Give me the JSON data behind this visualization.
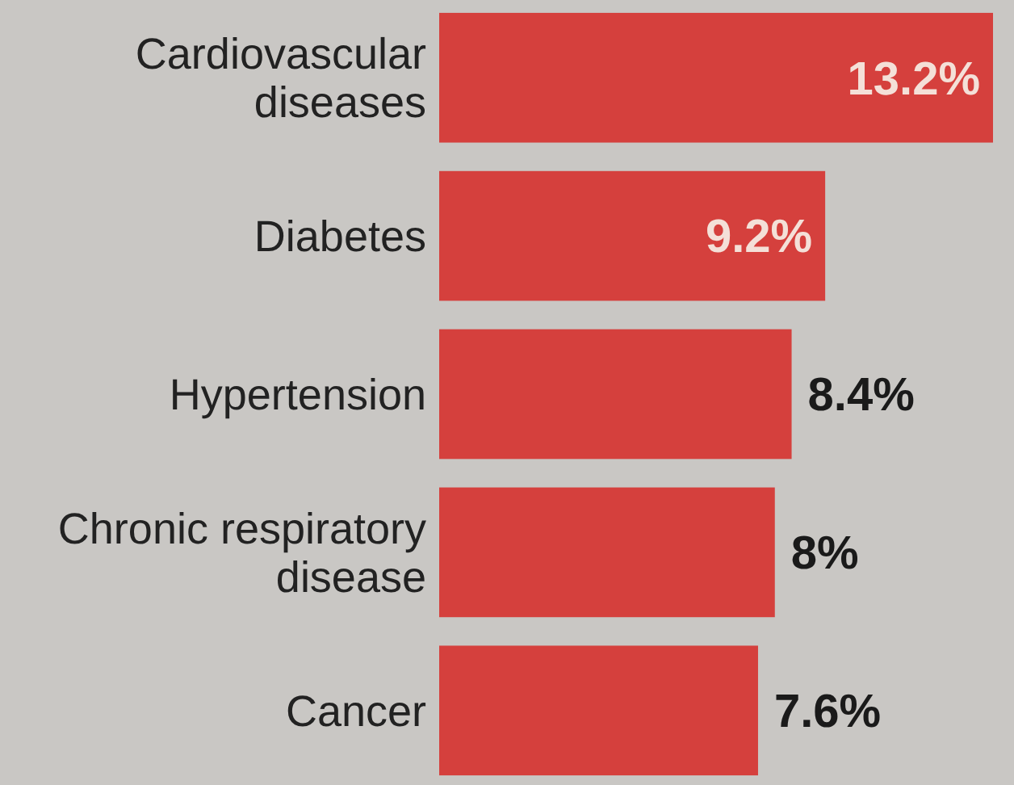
{
  "chart_data": {
    "type": "bar",
    "orientation": "horizontal",
    "categories": [
      "Cardiovascular diseases",
      "Diabetes",
      "Hypertension",
      "Chronic respiratory disease",
      "Cancer"
    ],
    "values": [
      13.2,
      9.2,
      8.4,
      8,
      7.6
    ],
    "value_labels": [
      "13.2%",
      "9.2%",
      "8.4%",
      "8%",
      "7.6%"
    ],
    "color": "#d5403d"
  }
}
